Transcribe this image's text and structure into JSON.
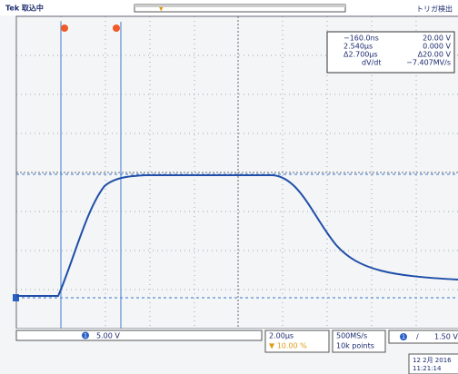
{
  "header": {
    "status": "Tek 取込中",
    "trigger_status": "トリガ検出"
  },
  "cursor_readout": {
    "t1": "−160.0ns",
    "v1": "20.00 V",
    "t2": "2.540µs",
    "v2": "0.000 V",
    "dt": "Δ2.700µs",
    "dv": "Δ20.00 V",
    "rate_label": "dV/dt",
    "rate": "−7.407MV/s"
  },
  "footer": {
    "channel": "1",
    "volts_per_div": "5.00 V",
    "time_per_div": "2.00µs",
    "trigger_pos": "▼ 10.00 %",
    "sample_rate": "500MS/s",
    "record_length": "10k points",
    "trigger_channel": "1",
    "trigger_slope": "/",
    "trigger_level": "1.50 V",
    "date": "12 2月 2016",
    "time": "11:21:14"
  }
}
